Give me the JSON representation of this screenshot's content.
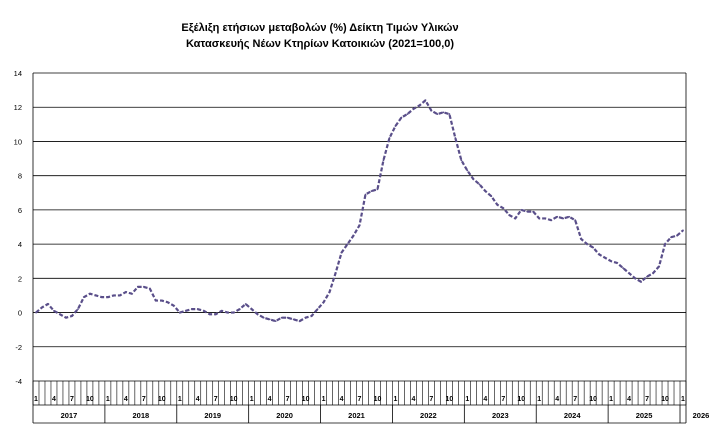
{
  "chart_data": {
    "type": "line",
    "title_lines": [
      "Εξέλιξη ετήσιων μεταβολών (%) Δείκτη Τιμών Υλικών",
      "Κατασκευής Νέων Κτηρίων Κατοικιών (2021=100,0)"
    ],
    "ylim": [
      -4,
      14
    ],
    "yticks": [
      -4,
      -2,
      0,
      2,
      4,
      6,
      8,
      10,
      12,
      14
    ],
    "grid": true,
    "series_color": "#5a4f8a",
    "month_tick_labels": [
      "1",
      "4",
      "7",
      "10"
    ],
    "years": [
      "2017",
      "2018",
      "2019",
      "2020",
      "2021",
      "2022",
      "2023",
      "2024",
      "2025",
      "2026"
    ],
    "last_year_months": 7,
    "series": [
      {
        "values": [
          0.0,
          0.3,
          0.5,
          0.1,
          -0.1,
          -0.3,
          -0.2,
          0.2,
          0.9,
          1.1,
          1.0,
          0.9,
          0.9,
          1.0,
          1.0,
          1.2,
          1.1,
          1.5,
          1.5,
          1.4,
          0.7,
          0.7,
          0.6,
          0.4,
          0.0,
          0.1,
          0.2,
          0.2,
          0.1,
          -0.1,
          -0.1,
          0.1,
          0.0,
          0.0,
          0.2,
          0.5,
          0.2,
          -0.1,
          -0.3,
          -0.4,
          -0.5,
          -0.3,
          -0.3,
          -0.4,
          -0.5,
          -0.3,
          -0.2,
          0.2,
          0.6,
          1.2,
          2.3,
          3.5,
          4.0,
          4.5,
          5.1,
          6.9,
          7.1,
          7.2,
          8.9,
          10.2,
          10.9,
          11.4,
          11.6,
          11.9,
          12.1,
          12.4,
          11.8,
          11.6,
          11.7,
          11.6,
          10.2,
          8.9,
          8.3,
          7.8,
          7.5,
          7.1,
          6.8,
          6.3,
          6.1,
          5.7,
          5.5,
          6.0,
          5.9,
          5.9,
          5.5,
          5.5,
          5.4,
          5.6,
          5.5,
          5.6,
          5.4,
          4.3,
          4.0,
          3.8,
          3.4,
          3.2,
          3.0,
          2.9,
          2.6,
          2.3,
          2.0,
          1.8,
          2.1,
          2.3,
          2.7,
          4.0,
          4.4,
          4.5,
          4.8
        ]
      }
    ]
  }
}
